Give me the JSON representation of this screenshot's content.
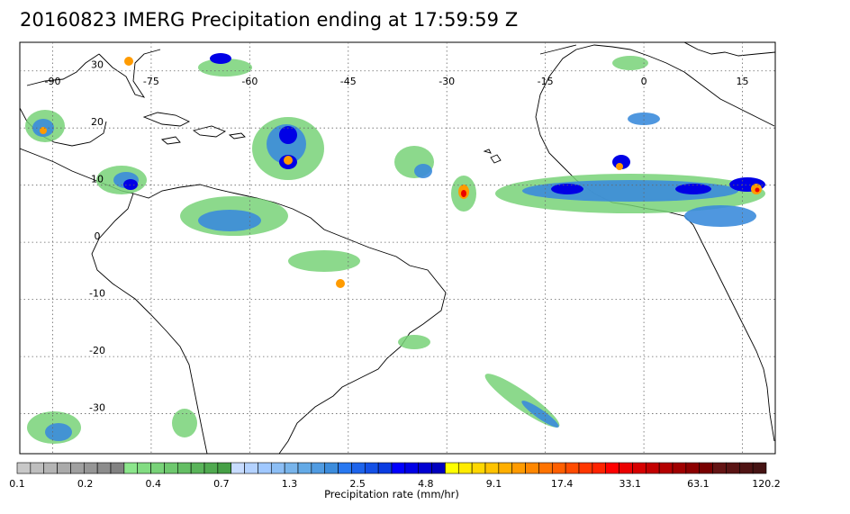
{
  "title": "20160823 IMERG Precipitation ending at 17:59:59 Z",
  "map": {
    "lon_range": [
      -95,
      20
    ],
    "lat_range": [
      -37,
      35
    ],
    "lon_labels": [
      "-90",
      "-75",
      "-60",
      "-45",
      "-30",
      "-15",
      "0",
      "15"
    ],
    "lon_values": [
      -90,
      -75,
      -60,
      -45,
      -30,
      -15,
      0,
      15
    ],
    "lat_labels": [
      "30",
      "20",
      "10",
      "0",
      "-10",
      "-20",
      "-30"
    ],
    "lat_values": [
      30,
      20,
      10,
      0,
      -10,
      -20,
      -30
    ],
    "grid": true
  },
  "colorbar": {
    "label": "Precipitation rate (mm/hr)",
    "tick_labels": [
      "0.1",
      "0.2",
      "0.4",
      "0.7",
      "1.3",
      "2.5",
      "4.8",
      "9.1",
      "17.4",
      "33.1",
      "63.1",
      "120.2"
    ],
    "colors": [
      "#c8c8c8",
      "#bebebe",
      "#b4b4b4",
      "#aaaaaa",
      "#a0a0a0",
      "#969696",
      "#8c8c8c",
      "#828282",
      "#8ce68c",
      "#82dc82",
      "#78d278",
      "#6ec86e",
      "#64be64",
      "#5ab45a",
      "#50aa50",
      "#46a046",
      "#c8dcff",
      "#b4d2ff",
      "#a0c8ff",
      "#8cbef5",
      "#78b4eb",
      "#64aae6",
      "#509be1",
      "#3c8cdc",
      "#2878f0",
      "#1e64eb",
      "#1450e6",
      "#0a3ce1",
      "#0000ff",
      "#0000e6",
      "#0000d2",
      "#0000be",
      "#ffff00",
      "#ffeb00",
      "#ffd700",
      "#ffc300",
      "#ffaf00",
      "#ff9b00",
      "#ff8700",
      "#ff7300",
      "#ff5f00",
      "#ff4b00",
      "#ff3700",
      "#ff2300",
      "#ff0000",
      "#eb0000",
      "#d70000",
      "#c30000",
      "#b40000",
      "#a00000",
      "#8c0000",
      "#780000",
      "#641414",
      "#5a1414",
      "#501414",
      "#461414"
    ]
  }
}
